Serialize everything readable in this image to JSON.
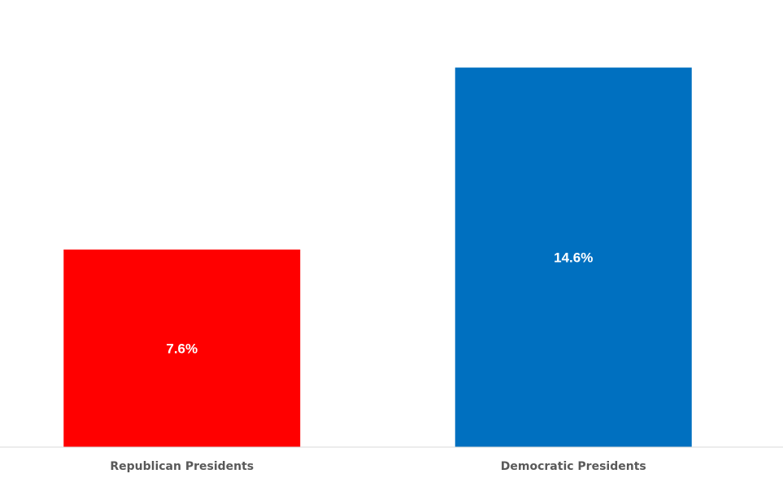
{
  "chart_data": {
    "type": "bar",
    "categories": [
      "Republican Presidents",
      "Democratic Presidents"
    ],
    "values": [
      7.6,
      14.6
    ],
    "value_labels": [
      "7.6%",
      "14.6%"
    ],
    "colors": [
      "#ff0000",
      "#0070c0"
    ],
    "axis_color": "#d9d9d9",
    "label_color": "#595959",
    "title": "",
    "xlabel": "",
    "ylabel": "",
    "ylim": [
      0,
      17.2
    ],
    "grid": false,
    "legend": "none"
  }
}
